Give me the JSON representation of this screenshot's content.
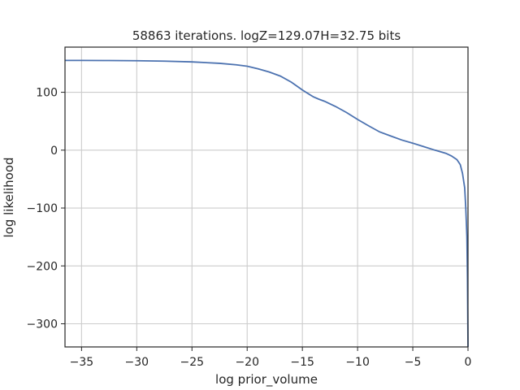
{
  "chart_data": {
    "type": "line",
    "title": "58863 iterations. logZ=129.07H=32.75 bits",
    "xlabel": "log prior_volume",
    "ylabel": "log likelihood",
    "xlim": [
      -36.5,
      0
    ],
    "ylim": [
      -340,
      178
    ],
    "xticks": [
      -35,
      -30,
      -25,
      -20,
      -15,
      -10,
      -5,
      0
    ],
    "xtick_labels": [
      "−35",
      "−30",
      "−25",
      "−20",
      "−15",
      "−10",
      "−5",
      "0"
    ],
    "yticks": [
      -300,
      -200,
      -100,
      0,
      100
    ],
    "ytick_labels": [
      "−300",
      "−200",
      "−100",
      "0",
      "100"
    ],
    "grid": true,
    "line_color": "#4c72b0",
    "series": [
      {
        "x": [
          -36.5,
          -35,
          -32.5,
          -30,
          -27.5,
          -25,
          -22.5,
          -21,
          -20,
          -19,
          -18,
          -17,
          -16,
          -15,
          -14,
          -13.5,
          -13,
          -12,
          -11,
          -10,
          -9,
          -8,
          -7,
          -6,
          -5,
          -4,
          -3,
          -2,
          -1.5,
          -1,
          -0.7,
          -0.5,
          -0.3,
          -0.2,
          -0.1,
          -0.05,
          0
        ],
        "y": [
          155,
          155,
          154.8,
          154.5,
          153.8,
          152.5,
          150,
          147.5,
          145,
          140.5,
          135,
          128,
          117.5,
          104,
          92,
          88,
          84.5,
          75.5,
          65,
          53,
          42,
          31.5,
          24.5,
          17.5,
          12,
          6,
          0,
          -5.5,
          -10,
          -16.5,
          -25,
          -40,
          -65,
          -100,
          -150,
          -220,
          -340
        ]
      }
    ]
  }
}
